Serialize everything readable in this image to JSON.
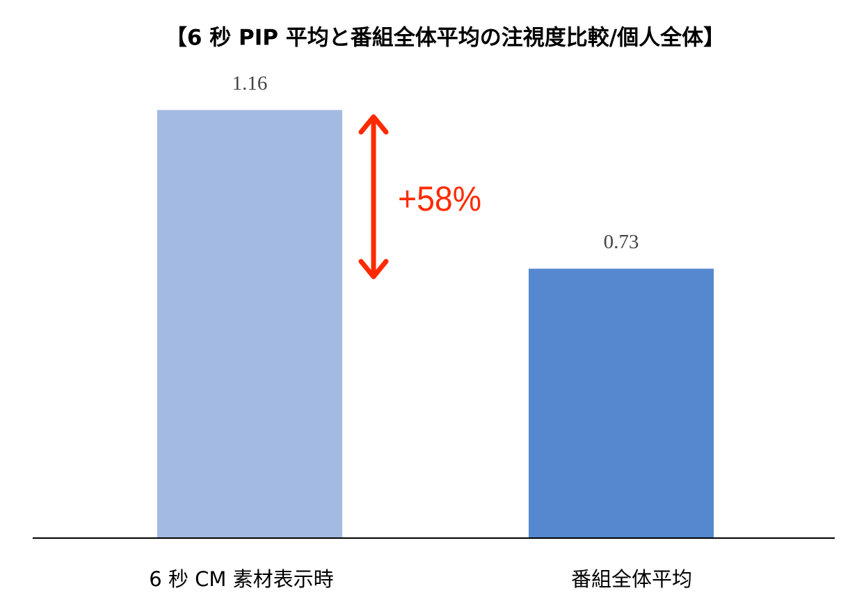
{
  "chart_data": {
    "type": "bar",
    "title": "【6 秒 PIP 平均と番組全体平均の注視度比較/個人全体】",
    "categories": [
      "6 秒 CM 素材表示時",
      "番組全体平均"
    ],
    "values": [
      1.16,
      0.73
    ],
    "colors": [
      "#a3bbe2",
      "#5588cf"
    ],
    "ylim": [
      0,
      1.2
    ],
    "annotation": "+58%"
  }
}
